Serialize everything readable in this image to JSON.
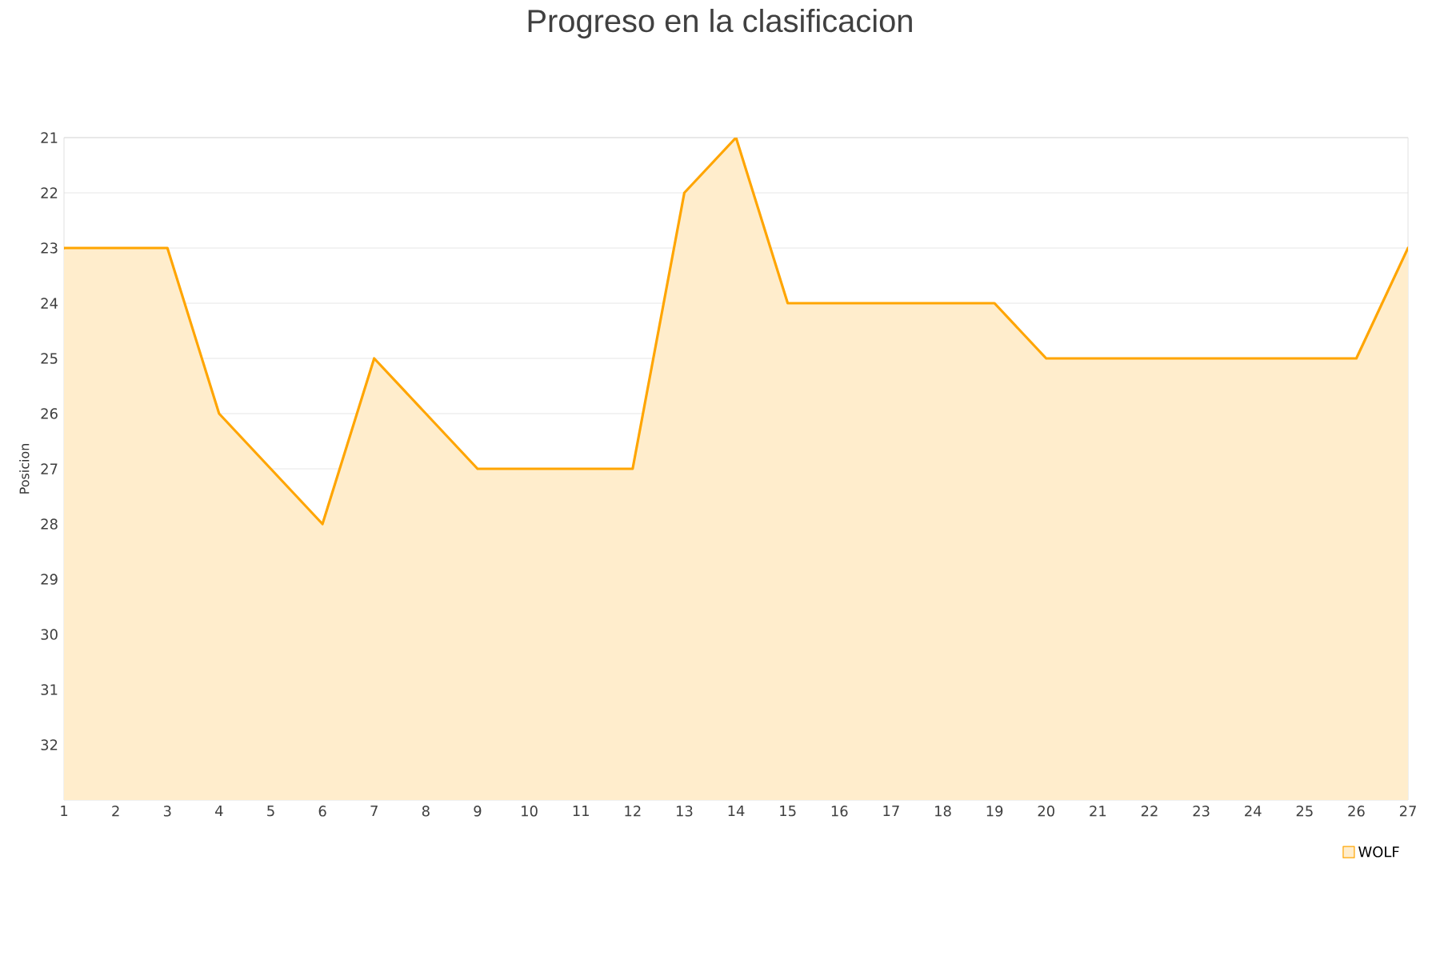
{
  "chart_data": {
    "type": "area",
    "title": "Progreso en la clasificacion",
    "ylabel": "Posicion",
    "x": [
      1,
      2,
      3,
      4,
      5,
      6,
      7,
      8,
      9,
      10,
      11,
      12,
      13,
      14,
      15,
      16,
      17,
      18,
      19,
      20,
      21,
      22,
      23,
      24,
      25,
      26,
      27
    ],
    "series": [
      {
        "name": "WOLF",
        "color": "#ffa500",
        "values": [
          23,
          23,
          23,
          26,
          27,
          28,
          25,
          26,
          27,
          27,
          27,
          27,
          22,
          21,
          24,
          24,
          24,
          24,
          24,
          25,
          25,
          25,
          25,
          25,
          25,
          25,
          23
        ]
      }
    ],
    "xlim": [
      1,
      27
    ],
    "xticks": [
      1,
      2,
      3,
      4,
      5,
      6,
      7,
      8,
      9,
      10,
      11,
      12,
      13,
      14,
      15,
      16,
      17,
      18,
      19,
      20,
      21,
      22,
      23,
      24,
      25,
      26,
      27
    ],
    "ylim": [
      33,
      21
    ],
    "yticks": [
      21,
      22,
      23,
      24,
      25,
      26,
      27,
      28,
      29,
      30,
      31,
      32
    ],
    "grid": "y",
    "legend": "bottom right"
  }
}
